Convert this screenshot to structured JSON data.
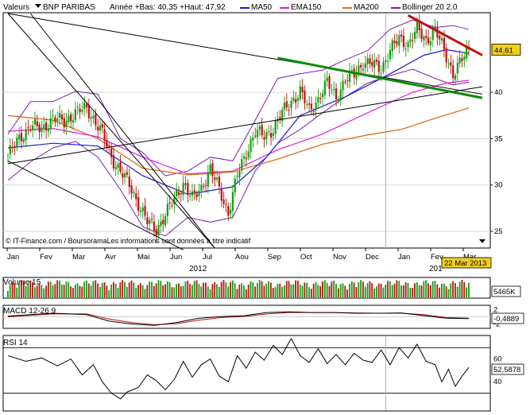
{
  "header": {
    "valeurs": "Valeurs",
    "ticker": "BNP PARIBAS",
    "range": "Année +Bas: 40,35 +Haut: 47,92",
    "legend": [
      {
        "name": "MA50",
        "color": "#1a1ad0"
      },
      {
        "name": "EMA150",
        "color": "#e020e0"
      },
      {
        "name": "MA200",
        "color": "#e07010"
      },
      {
        "name": "Bollinger 20 2.0",
        "color": "#7a20b0"
      }
    ]
  },
  "credit": "© IT-Finance.com / BoursoramaLes informations sont données à titre indicatif",
  "date_badge": "22 Mar 2013",
  "year_left": "2012",
  "year_right": "201",
  "months": [
    "Jan",
    "Fev",
    "Mar",
    "Avr",
    "Mai",
    "Jun",
    "Jul",
    "Aou",
    "Sep",
    "Oct",
    "Nov",
    "Dec",
    "Jan",
    "Fev",
    "Mar"
  ],
  "colors": {
    "up": "#10a010",
    "down": "#c01010",
    "green_line": "#0a8a0a",
    "red_line": "#c01010",
    "badge": "#f0d020"
  },
  "chart_data": [
    {
      "type": "candlestick",
      "name": "price",
      "yticks": [
        25,
        30,
        35,
        40
      ],
      "ylim": [
        23.2,
        48.5
      ],
      "last_value": "44,61",
      "last": 44.61,
      "close_points": [
        [
          0,
          33.2
        ],
        [
          5,
          35.0
        ],
        [
          10,
          36.4
        ],
        [
          15,
          36.0
        ],
        [
          20,
          37.2
        ],
        [
          25,
          36.8
        ],
        [
          30,
          37.8
        ],
        [
          35,
          38.3
        ],
        [
          38,
          37.2
        ],
        [
          42,
          35.5
        ],
        [
          46,
          33.0
        ],
        [
          50,
          31.5
        ],
        [
          54,
          30.0
        ],
        [
          58,
          28.0
        ],
        [
          62,
          26.0
        ],
        [
          66,
          25.2
        ],
        [
          70,
          26.8
        ],
        [
          74,
          28.5
        ],
        [
          78,
          30.2
        ],
        [
          82,
          28.5
        ],
        [
          86,
          29.7
        ],
        [
          90,
          31.7
        ],
        [
          94,
          29.5
        ],
        [
          98,
          27.0
        ],
        [
          102,
          31.0
        ],
        [
          106,
          33.5
        ],
        [
          110,
          35.8
        ],
        [
          114,
          35.2
        ],
        [
          118,
          36.1
        ],
        [
          122,
          37.8
        ],
        [
          126,
          39.0
        ],
        [
          130,
          40.1
        ],
        [
          134,
          38.0
        ],
        [
          138,
          39.3
        ],
        [
          142,
          41.0
        ],
        [
          146,
          39.5
        ],
        [
          150,
          41.3
        ],
        [
          154,
          42.0
        ],
        [
          158,
          43.2
        ],
        [
          162,
          43.0
        ],
        [
          166,
          42.6
        ],
        [
          170,
          44.5
        ],
        [
          174,
          45.8
        ],
        [
          178,
          45.2
        ],
        [
          182,
          46.8
        ],
        [
          186,
          45.6
        ],
        [
          190,
          46.7
        ],
        [
          194,
          44.5
        ],
        [
          198,
          42.0
        ],
        [
          202,
          43.5
        ],
        [
          205,
          44.61
        ]
      ],
      "ma50_points": [
        [
          0,
          34.0
        ],
        [
          20,
          34.5
        ],
        [
          40,
          34.2
        ],
        [
          60,
          31.0
        ],
        [
          80,
          29.0
        ],
        [
          100,
          29.8
        ],
        [
          115,
          33.0
        ],
        [
          130,
          37.5
        ],
        [
          150,
          39.5
        ],
        [
          170,
          42.0
        ],
        [
          185,
          44.0
        ],
        [
          195,
          44.6
        ],
        [
          205,
          44.2
        ]
      ],
      "ema150_points": [
        [
          0,
          35.8
        ],
        [
          20,
          36.1
        ],
        [
          40,
          35.2
        ],
        [
          60,
          33.0
        ],
        [
          80,
          31.2
        ],
        [
          100,
          31.5
        ],
        [
          120,
          33.8
        ],
        [
          140,
          35.5
        ],
        [
          160,
          37.8
        ],
        [
          180,
          40.0
        ],
        [
          195,
          41.0
        ],
        [
          205,
          41.3
        ]
      ],
      "ma200_points": [
        [
          0,
          37.5
        ],
        [
          20,
          37.0
        ],
        [
          40,
          35.0
        ],
        [
          60,
          31.8
        ],
        [
          80,
          31.1
        ],
        [
          100,
          31.4
        ],
        [
          120,
          32.8
        ],
        [
          140,
          34.4
        ],
        [
          160,
          35.4
        ],
        [
          175,
          36.0
        ],
        [
          190,
          37.2
        ],
        [
          205,
          38.3
        ]
      ],
      "bb_upper_points": [
        [
          0,
          35.5
        ],
        [
          10,
          39.0
        ],
        [
          20,
          39.0
        ],
        [
          30,
          40.1
        ],
        [
          40,
          39.8
        ],
        [
          50,
          35.0
        ],
        [
          60,
          33.5
        ],
        [
          70,
          31.0
        ],
        [
          80,
          31.5
        ],
        [
          90,
          33.0
        ],
        [
          100,
          32.6
        ],
        [
          110,
          37.0
        ],
        [
          120,
          41.5
        ],
        [
          130,
          42.0
        ],
        [
          140,
          42.4
        ],
        [
          150,
          43.5
        ],
        [
          160,
          44.5
        ],
        [
          170,
          46.8
        ],
        [
          180,
          47.8
        ],
        [
          190,
          47.0
        ],
        [
          198,
          47.2
        ],
        [
          205,
          46.8
        ]
      ],
      "bb_lower_points": [
        [
          0,
          30.5
        ],
        [
          10,
          32.5
        ],
        [
          20,
          34.0
        ],
        [
          30,
          34.7
        ],
        [
          40,
          33.0
        ],
        [
          50,
          29.5
        ],
        [
          60,
          25.5
        ],
        [
          70,
          24.5
        ],
        [
          80,
          26.5
        ],
        [
          90,
          26.0
        ],
        [
          100,
          26.5
        ],
        [
          110,
          31.5
        ],
        [
          120,
          34.5
        ],
        [
          130,
          36.0
        ],
        [
          140,
          37.8
        ],
        [
          150,
          39.5
        ],
        [
          160,
          41.0
        ],
        [
          170,
          41.8
        ],
        [
          180,
          42.5
        ],
        [
          190,
          41.5
        ],
        [
          198,
          40.8
        ],
        [
          205,
          41.1
        ]
      ],
      "trendlines": [
        {
          "role": "black",
          "color": "#000000",
          "width": 1,
          "from": [
            0,
            48.5
          ],
          "to": [
            211,
            39.8
          ]
        },
        {
          "role": "black",
          "color": "#000000",
          "width": 1,
          "from": [
            0,
            32.3
          ],
          "to": [
            211,
            40.6
          ]
        },
        {
          "role": "black",
          "color": "#000000",
          "width": 1,
          "from": [
            0,
            32.6
          ],
          "to": [
            78,
            23.0
          ]
        },
        {
          "role": "black",
          "color": "#000000",
          "width": 1,
          "from": [
            0,
            48.5
          ],
          "to": [
            92,
            23.2
          ]
        },
        {
          "role": "black",
          "color": "#000000",
          "width": 1,
          "from": [
            10,
            48.5
          ],
          "to": [
            92,
            23.2
          ]
        },
        {
          "role": "green",
          "color": "#0a8a0a",
          "width": 3,
          "from": [
            120,
            43.7
          ],
          "to": [
            211,
            39.4
          ]
        },
        {
          "role": "red",
          "color": "#c01010",
          "width": 3,
          "from": [
            178,
            48.3
          ],
          "to": [
            211,
            44.0
          ]
        }
      ]
    },
    {
      "type": "bar",
      "name": "Volume 15",
      "last_value": "5465K"
    },
    {
      "type": "line",
      "name": "MACD 12-26 9",
      "yticks": [
        2,
        0,
        -2
      ],
      "ylim": [
        -3,
        3
      ],
      "last_value": "-0,4889",
      "macd_points": [
        [
          0,
          0.2
        ],
        [
          20,
          1.0
        ],
        [
          35,
          0.6
        ],
        [
          45,
          -1.2
        ],
        [
          55,
          -2.0
        ],
        [
          65,
          -2.4
        ],
        [
          75,
          -1.6
        ],
        [
          85,
          -0.4
        ],
        [
          95,
          0.1
        ],
        [
          105,
          0.3
        ],
        [
          115,
          1.2
        ],
        [
          125,
          1.4
        ],
        [
          135,
          1.2
        ],
        [
          145,
          1.2
        ],
        [
          155,
          1.0
        ],
        [
          165,
          1.0
        ],
        [
          175,
          1.1
        ],
        [
          185,
          0.3
        ],
        [
          195,
          -0.4
        ],
        [
          205,
          -0.5
        ]
      ],
      "signal_points": [
        [
          0,
          0.0
        ],
        [
          20,
          0.8
        ],
        [
          35,
          0.8
        ],
        [
          45,
          -0.6
        ],
        [
          55,
          -1.6
        ],
        [
          65,
          -2.2
        ],
        [
          75,
          -1.9
        ],
        [
          85,
          -0.9
        ],
        [
          95,
          -0.2
        ],
        [
          105,
          0.1
        ],
        [
          115,
          0.8
        ],
        [
          125,
          1.2
        ],
        [
          135,
          1.2
        ],
        [
          145,
          1.2
        ],
        [
          155,
          1.1
        ],
        [
          165,
          1.0
        ],
        [
          175,
          1.0
        ],
        [
          185,
          0.6
        ],
        [
          195,
          -0.2
        ],
        [
          205,
          -0.4
        ]
      ]
    },
    {
      "type": "line",
      "name": "RSI 14",
      "yticks": [
        60,
        40
      ],
      "ylim": [
        15,
        80
      ],
      "last_value": "52,5878",
      "rsi_points": [
        [
          0,
          63
        ],
        [
          8,
          58
        ],
        [
          15,
          61
        ],
        [
          22,
          54
        ],
        [
          28,
          60
        ],
        [
          33,
          46
        ],
        [
          38,
          55
        ],
        [
          42,
          40
        ],
        [
          46,
          30
        ],
        [
          50,
          25
        ],
        [
          53,
          31
        ],
        [
          58,
          35
        ],
        [
          62,
          46
        ],
        [
          66,
          41
        ],
        [
          70,
          33
        ],
        [
          74,
          42
        ],
        [
          78,
          58
        ],
        [
          82,
          44
        ],
        [
          86,
          55
        ],
        [
          90,
          60
        ],
        [
          94,
          45
        ],
        [
          98,
          40
        ],
        [
          102,
          63
        ],
        [
          106,
          52
        ],
        [
          110,
          66
        ],
        [
          114,
          59
        ],
        [
          118,
          72
        ],
        [
          122,
          64
        ],
        [
          126,
          78
        ],
        [
          130,
          63
        ],
        [
          134,
          57
        ],
        [
          138,
          69
        ],
        [
          142,
          56
        ],
        [
          146,
          64
        ],
        [
          150,
          55
        ],
        [
          154,
          65
        ],
        [
          158,
          59
        ],
        [
          162,
          57
        ],
        [
          166,
          68
        ],
        [
          170,
          55
        ],
        [
          174,
          70
        ],
        [
          178,
          61
        ],
        [
          182,
          73
        ],
        [
          186,
          58
        ],
        [
          190,
          55
        ],
        [
          193,
          40
        ],
        [
          196,
          51
        ],
        [
          199,
          36
        ],
        [
          202,
          45
        ],
        [
          205,
          52.6
        ]
      ]
    }
  ]
}
